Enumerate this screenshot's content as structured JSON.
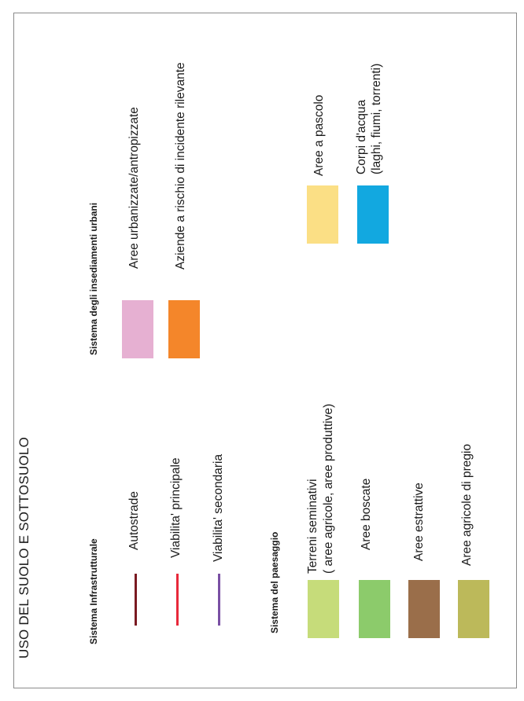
{
  "title": "USO DEL SUOLO E SOTTOSUOLO",
  "infrastrutturale": {
    "heading": "Sistema Infrastrutturale",
    "items": [
      {
        "label": "Autostrade",
        "color": "#7a1a22"
      },
      {
        "label": "Viabilita' principale",
        "color": "#e8283a"
      },
      {
        "label": "Viabilita' secondaria",
        "color": "#7a50a4"
      }
    ]
  },
  "paesaggio": {
    "heading": "Sistema del paesaggio",
    "items": [
      {
        "label_line1": "Terreni seminativi",
        "label_line2": "( aree agricole, aree produttive)",
        "color": "#c6dc7a"
      },
      {
        "label": "Aree boscate",
        "color": "#8ccb6b"
      },
      {
        "label": "Aree estrattive",
        "color": "#9a6e4a"
      },
      {
        "label": "Aree agricole di pregio",
        "color": "#bcb95a"
      }
    ]
  },
  "insediamenti": {
    "heading": "Sistema degli insediamenti urbani",
    "items": [
      {
        "label": "Aree urbanizzate/antropizzate",
        "color": "#e6b0d2"
      },
      {
        "label": "Aziende a rischio di incidente rilevante",
        "color": "#f4862a"
      },
      {
        "label": "Aree a pascolo",
        "color": "#fbdf85"
      },
      {
        "label_line1": "Corpi d'acqua",
        "label_line2": "(laghi, fiumi, torrenti)",
        "color": "#12a8e0"
      }
    ]
  }
}
